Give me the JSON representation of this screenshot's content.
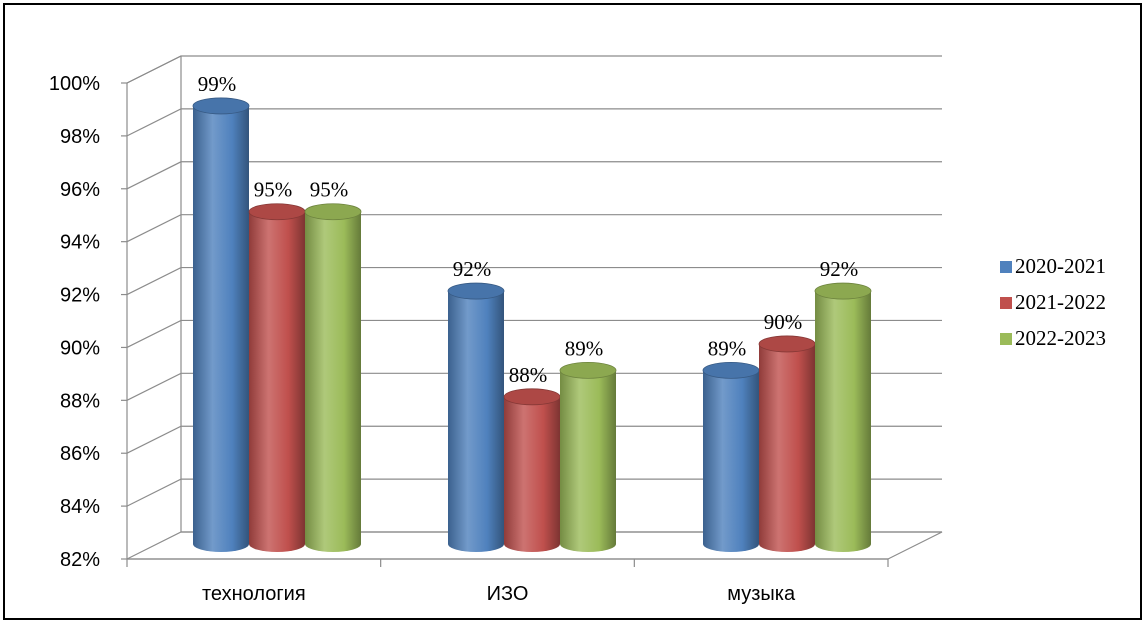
{
  "chart_data": {
    "type": "bar",
    "style": "3d-cylinder",
    "categories": [
      "технология",
      "ИЗО",
      "музыка"
    ],
    "series": [
      {
        "name": "2020-2021",
        "values": [
          99,
          92,
          89
        ],
        "labels": [
          "99%",
          "92%",
          "89%"
        ],
        "color": "#4F81BD"
      },
      {
        "name": "2021-2022",
        "values": [
          95,
          88,
          90
        ],
        "labels": [
          "95%",
          "88%",
          "90%"
        ],
        "color": "#C0504D"
      },
      {
        "name": "2022-2023",
        "values": [
          95,
          89,
          92
        ],
        "labels": [
          "95%",
          "89%",
          "92%"
        ],
        "color": "#9BBB59"
      }
    ],
    "ylim": [
      82,
      100
    ],
    "ytick_labels": [
      "82%",
      "84%",
      "86%",
      "88%",
      "90%",
      "92%",
      "94%",
      "96%",
      "98%",
      "100%"
    ],
    "grid": true,
    "legend": "right"
  }
}
